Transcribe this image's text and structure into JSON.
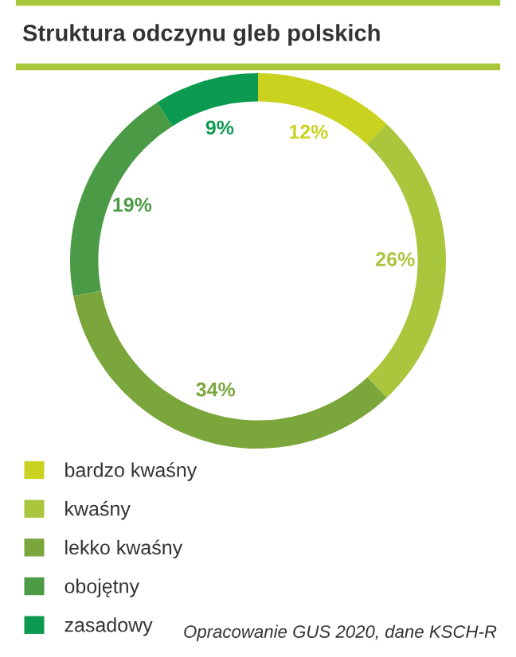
{
  "chart_data": {
    "type": "donut",
    "title": "Struktura odczynu gleb polskich",
    "categories": [
      "bardzo kwaśny",
      "kwaśny",
      "lekko kwaśny",
      "obojętny",
      "zasadowy"
    ],
    "values": [
      12,
      26,
      34,
      19,
      9
    ],
    "colors": [
      "#c9d21e",
      "#a9c63c",
      "#7aa63c",
      "#4b9a45",
      "#0b9a4f"
    ],
    "value_labels": [
      "12%",
      "26%",
      "34%",
      "19%",
      "9%"
    ],
    "legend": "bottom left",
    "annotations": [
      "Opracowanie GUS 2020, dane KSCH-R"
    ]
  }
}
